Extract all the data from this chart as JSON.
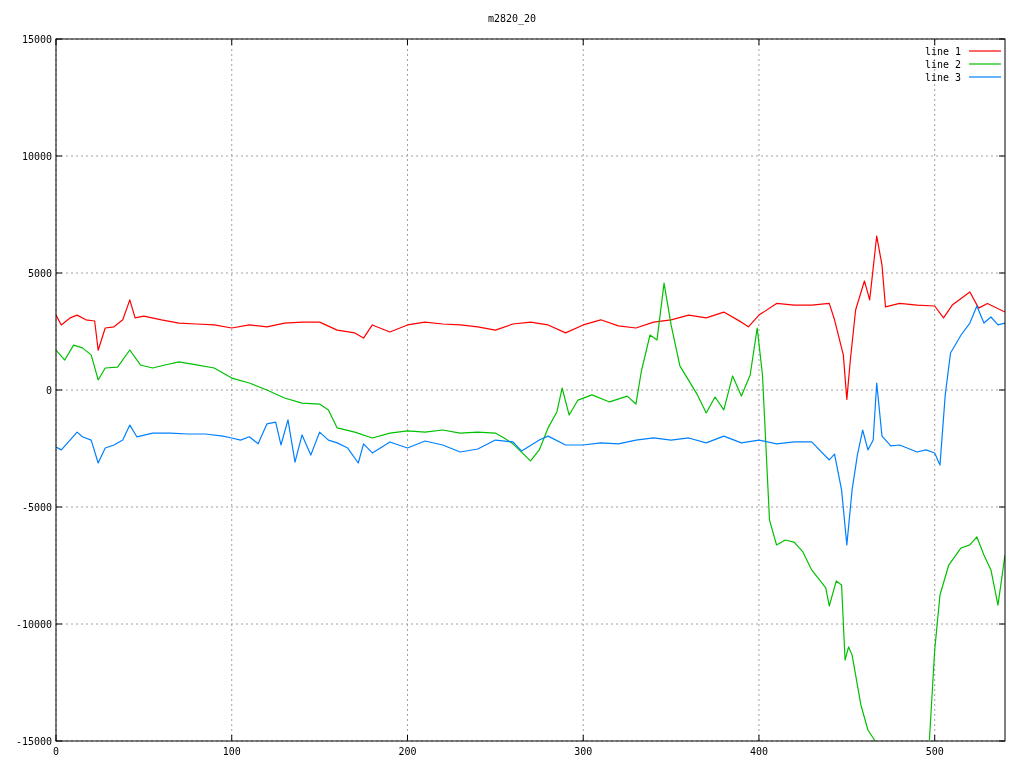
{
  "chart_data": {
    "type": "line",
    "title": "m2820_20",
    "xlim": [
      0,
      540
    ],
    "ylim": [
      -15000,
      15000
    ],
    "xticks": [
      0,
      100,
      200,
      300,
      400,
      500
    ],
    "yticks": [
      -15000,
      -10000,
      -5000,
      0,
      5000,
      10000,
      15000
    ],
    "grid": true,
    "legend": "top right",
    "line_style": "solid",
    "marker": "none",
    "series": [
      {
        "name": "line 1",
        "color": "#ff0000",
        "x": [
          0,
          3,
          8,
          12,
          17,
          22,
          24,
          28,
          33,
          38,
          42,
          45,
          50,
          60,
          70,
          80,
          90,
          100,
          110,
          120,
          130,
          140,
          150,
          160,
          170,
          175,
          180,
          190,
          200,
          210,
          220,
          230,
          240,
          250,
          260,
          270,
          280,
          290,
          300,
          310,
          320,
          330,
          340,
          350,
          360,
          370,
          380,
          390,
          394,
          400,
          410,
          420,
          430,
          440,
          443,
          448,
          450,
          452,
          455,
          460,
          463,
          467,
          470,
          472,
          480,
          490,
          500,
          505,
          510,
          520,
          525,
          530,
          540
        ],
        "values": [
          3200,
          2780,
          3080,
          3200,
          3000,
          2950,
          1700,
          2650,
          2700,
          3000,
          3850,
          3080,
          3160,
          3000,
          2860,
          2820,
          2780,
          2650,
          2780,
          2700,
          2860,
          2900,
          2900,
          2560,
          2440,
          2220,
          2780,
          2480,
          2780,
          2900,
          2820,
          2780,
          2700,
          2560,
          2820,
          2900,
          2780,
          2440,
          2780,
          3000,
          2740,
          2650,
          2900,
          3000,
          3200,
          3080,
          3330,
          2900,
          2700,
          3200,
          3700,
          3630,
          3630,
          3700,
          3000,
          1500,
          -400,
          1280,
          3420,
          4660,
          3850,
          6580,
          5340,
          3550,
          3700,
          3630,
          3590,
          3080,
          3630,
          4190,
          3500,
          3700,
          3330
        ]
      },
      {
        "name": "line 2",
        "color": "#00c000",
        "x": [
          0,
          5,
          10,
          15,
          20,
          24,
          28,
          35,
          42,
          48,
          55,
          62,
          70,
          80,
          90,
          100,
          110,
          120,
          130,
          140,
          150,
          155,
          160,
          170,
          180,
          190,
          200,
          210,
          220,
          230,
          240,
          250,
          255,
          260,
          270,
          275,
          280,
          285,
          288,
          292,
          297,
          305,
          315,
          325,
          330,
          333,
          338,
          342,
          346,
          350,
          355,
          365,
          370,
          375,
          380,
          385,
          390,
          395,
          399,
          402,
          406,
          410,
          415,
          420,
          425,
          430,
          438,
          440,
          444,
          447,
          449,
          451,
          453,
          458,
          462,
          465,
          466,
          470,
          480,
          490,
          497,
          500,
          503,
          508,
          515,
          520,
          524,
          528,
          532,
          536,
          540
        ],
        "values": [
          1700,
          1280,
          1920,
          1800,
          1500,
          430,
          940,
          980,
          1710,
          1070,
          940,
          1070,
          1200,
          1070,
          940,
          510,
          300,
          0,
          -340,
          -560,
          -600,
          -850,
          -1620,
          -1800,
          -2050,
          -1840,
          -1750,
          -1800,
          -1710,
          -1840,
          -1800,
          -1840,
          -2050,
          -2300,
          -3030,
          -2560,
          -1620,
          -940,
          85,
          -1070,
          -430,
          -210,
          -510,
          -260,
          -600,
          770,
          2350,
          2140,
          4570,
          2780,
          1030,
          -210,
          -980,
          -300,
          -850,
          600,
          -260,
          640,
          2650,
          640,
          -5560,
          -6620,
          -6410,
          -6500,
          -6920,
          -7690,
          -8460,
          -9230,
          -8160,
          -8330,
          -11540,
          -10980,
          -11330,
          -13460,
          -14530,
          -14870,
          -15000,
          null,
          null,
          null,
          -14960,
          -11110,
          -8760,
          -7480,
          -6750,
          -6620,
          -6280,
          -7050,
          -7690,
          -9190,
          -7050
        ]
      },
      {
        "name": "line 3",
        "color": "#0080ff",
        "x": [
          0,
          3,
          8,
          12,
          15,
          20,
          24,
          28,
          33,
          38,
          42,
          46,
          55,
          65,
          75,
          85,
          95,
          100,
          105,
          110,
          115,
          120,
          125,
          128,
          132,
          136,
          140,
          145,
          150,
          155,
          160,
          166,
          172,
          175,
          180,
          190,
          200,
          210,
          220,
          230,
          240,
          250,
          260,
          265,
          275,
          280,
          290,
          300,
          310,
          320,
          330,
          340,
          350,
          360,
          370,
          380,
          390,
          400,
          410,
          420,
          430,
          440,
          443,
          447,
          450,
          453,
          456,
          459,
          462,
          465,
          467,
          470,
          475,
          480,
          490,
          495,
          500,
          503,
          506,
          509,
          515,
          520,
          524,
          528,
          532,
          536,
          540
        ],
        "values": [
          -2440,
          -2560,
          -2140,
          -1800,
          -2000,
          -2140,
          -3120,
          -2480,
          -2350,
          -2140,
          -1500,
          -2000,
          -1840,
          -1840,
          -1880,
          -1880,
          -1970,
          -2050,
          -2140,
          -2000,
          -2300,
          -1450,
          -1370,
          -2350,
          -1280,
          -3080,
          -1920,
          -2780,
          -1800,
          -2140,
          -2260,
          -2480,
          -3120,
          -2300,
          -2690,
          -2220,
          -2480,
          -2180,
          -2350,
          -2650,
          -2520,
          -2140,
          -2220,
          -2610,
          -2140,
          -1970,
          -2350,
          -2350,
          -2260,
          -2300,
          -2140,
          -2050,
          -2140,
          -2050,
          -2260,
          -1970,
          -2260,
          -2140,
          -2300,
          -2220,
          -2220,
          -2990,
          -2740,
          -4270,
          -6620,
          -4270,
          -2780,
          -1710,
          -2560,
          -2140,
          300,
          -1970,
          -2390,
          -2350,
          -2650,
          -2560,
          -2690,
          -3210,
          -210,
          1580,
          2350,
          2860,
          3590,
          2860,
          3120,
          2780,
          2860
        ]
      }
    ]
  }
}
